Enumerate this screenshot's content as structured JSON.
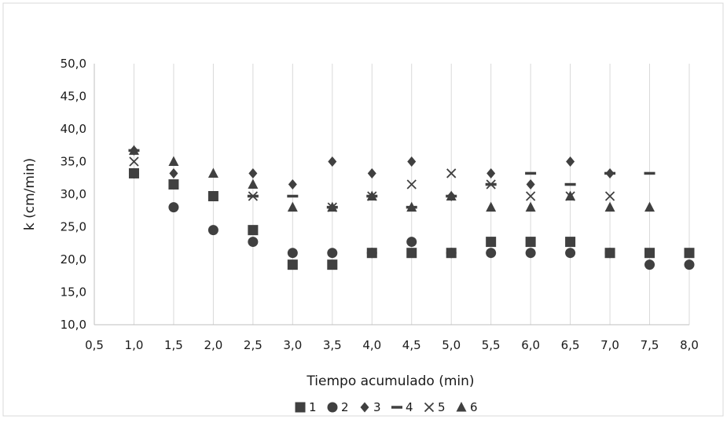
{
  "chart_data": {
    "type": "scatter",
    "title": "",
    "xlabel": "Tiempo acumulado (min)",
    "ylabel": "k (cm/min)",
    "xlim": [
      0.5,
      8.0
    ],
    "ylim": [
      10.0,
      50.0
    ],
    "x_ticks": [
      "0,5",
      "1,0",
      "1,5",
      "2,0",
      "2,5",
      "3,0",
      "3,5",
      "4,0",
      "4,5",
      "5,0",
      "5,5",
      "6,0",
      "6,5",
      "7,0",
      "7,5",
      "8,0"
    ],
    "y_ticks": [
      "10,0",
      "15,0",
      "20,0",
      "25,0",
      "30,0",
      "35,0",
      "40,0",
      "45,0",
      "50,0"
    ],
    "grid": "vertical",
    "legend_position": "bottom",
    "marker_color": "#404040",
    "series": [
      {
        "name": "1",
        "marker": "square",
        "points": [
          [
            1.0,
            33.2
          ],
          [
            1.5,
            31.5
          ],
          [
            2.0,
            29.7
          ],
          [
            2.5,
            24.5
          ],
          [
            3.0,
            19.2
          ],
          [
            3.5,
            19.2
          ],
          [
            4.0,
            21.0
          ],
          [
            4.5,
            21.0
          ],
          [
            5.0,
            21.0
          ],
          [
            5.5,
            22.7
          ],
          [
            6.0,
            22.7
          ],
          [
            6.5,
            22.7
          ],
          [
            7.0,
            21.0
          ],
          [
            7.5,
            21.0
          ],
          [
            8.0,
            21.0
          ]
        ]
      },
      {
        "name": "2",
        "marker": "circle",
        "points": [
          [
            1.0,
            33.2
          ],
          [
            1.5,
            28.0
          ],
          [
            2.0,
            24.5
          ],
          [
            2.5,
            22.7
          ],
          [
            3.0,
            21.0
          ],
          [
            3.5,
            21.0
          ],
          [
            4.0,
            21.0
          ],
          [
            4.5,
            22.7
          ],
          [
            5.0,
            21.0
          ],
          [
            5.5,
            21.0
          ],
          [
            6.0,
            21.0
          ],
          [
            6.5,
            21.0
          ],
          [
            7.0,
            21.0
          ],
          [
            7.5,
            19.2
          ],
          [
            8.0,
            19.2
          ]
        ]
      },
      {
        "name": "3",
        "marker": "diamond",
        "points": [
          [
            1.0,
            36.7
          ],
          [
            1.5,
            33.2
          ],
          [
            2.0,
            29.7
          ],
          [
            2.5,
            33.2
          ],
          [
            3.0,
            31.5
          ],
          [
            3.5,
            35.0
          ],
          [
            4.0,
            33.2
          ],
          [
            4.5,
            35.0
          ],
          [
            5.0,
            29.7
          ],
          [
            5.5,
            33.2
          ],
          [
            6.0,
            31.5
          ],
          [
            6.5,
            35.0
          ],
          [
            7.0,
            33.2
          ]
        ]
      },
      {
        "name": "4",
        "marker": "dash",
        "points": [
          [
            1.0,
            36.7
          ],
          [
            2.5,
            29.7
          ],
          [
            3.0,
            29.7
          ],
          [
            3.5,
            28.0
          ],
          [
            4.0,
            29.7
          ],
          [
            4.5,
            28.0
          ],
          [
            5.0,
            29.7
          ],
          [
            5.5,
            31.5
          ],
          [
            6.0,
            33.2
          ],
          [
            6.5,
            31.5
          ],
          [
            7.0,
            33.2
          ],
          [
            7.5,
            33.2
          ]
        ]
      },
      {
        "name": "5",
        "marker": "x",
        "points": [
          [
            1.0,
            35.0
          ],
          [
            2.5,
            29.7
          ],
          [
            3.5,
            28.0
          ],
          [
            4.0,
            29.7
          ],
          [
            4.5,
            31.5
          ],
          [
            5.0,
            33.2
          ],
          [
            5.5,
            31.5
          ],
          [
            6.0,
            29.7
          ],
          [
            6.5,
            29.7
          ],
          [
            7.0,
            29.7
          ]
        ]
      },
      {
        "name": "6",
        "marker": "triangle",
        "points": [
          [
            1.0,
            36.7
          ],
          [
            1.5,
            35.0
          ],
          [
            2.0,
            33.2
          ],
          [
            2.5,
            31.5
          ],
          [
            3.0,
            28.0
          ],
          [
            3.5,
            28.0
          ],
          [
            4.0,
            29.7
          ],
          [
            4.5,
            28.0
          ],
          [
            5.0,
            29.7
          ],
          [
            5.5,
            28.0
          ],
          [
            6.0,
            28.0
          ],
          [
            6.5,
            29.7
          ],
          [
            7.0,
            28.0
          ],
          [
            7.5,
            28.0
          ]
        ]
      }
    ]
  }
}
